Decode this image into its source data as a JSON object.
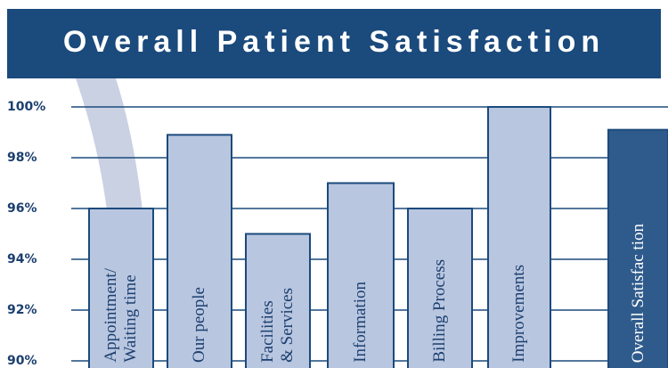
{
  "chart_data": {
    "type": "bar",
    "title": "Overall Patient Satisfaction",
    "categories": [
      "Appointment/\nWaiting time",
      "Our people",
      "Facilities\n& Services",
      "Information",
      "Billing Process",
      "Improvements",
      "Overall Satisfac tion"
    ],
    "values": [
      96,
      98.9,
      95,
      97,
      96,
      100,
      99.1
    ],
    "colors": [
      "#b9c6e0",
      "#b9c6e0",
      "#b9c6e0",
      "#b9c6e0",
      "#b9c6e0",
      "#b9c6e0",
      "#2f5b8c"
    ],
    "ylim": [
      90,
      100
    ],
    "yticks": [
      {
        "value": 90,
        "label": "90%"
      },
      {
        "value": 92,
        "label": "92%"
      },
      {
        "value": 94,
        "label": "94%"
      },
      {
        "value": 96,
        "label": "96%"
      },
      {
        "value": 98,
        "label": "98%"
      },
      {
        "value": 100,
        "label": "100%"
      }
    ],
    "grid": true
  }
}
